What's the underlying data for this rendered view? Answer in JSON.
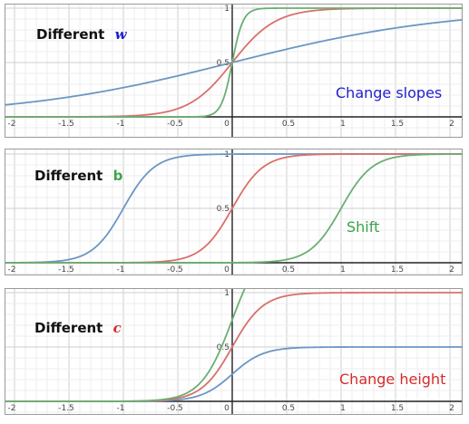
{
  "colors": {
    "blue": "#6b96c4",
    "red": "#d9706b",
    "green": "#6aaf72",
    "grid_minor": "#ededed",
    "grid_major": "#cfcfcf",
    "axis": "#222222",
    "panel_border": "#9a9a9a"
  },
  "chart_data": [
    {
      "type": "line",
      "title": "",
      "label_prefix": "Different",
      "label_var": "w",
      "label_var_color": "#1f1fcf",
      "annotation": "Change slopes",
      "annotation_color": "#1f1fcf",
      "xlim": [
        -2.1,
        2.1
      ],
      "ylim": [
        -0.22,
        1.0
      ],
      "x_ticks": [
        "-2",
        "-1.5",
        "-1",
        "-0.5",
        "0",
        "0.5",
        "1",
        "1.5",
        "2"
      ],
      "y_ticks": [
        "0.5",
        "1"
      ],
      "grid": true,
      "series": [
        {
          "color": "blue",
          "function": "sigmoid",
          "w": 1,
          "b": 0,
          "c": 1
        },
        {
          "color": "red",
          "function": "sigmoid",
          "w": 5,
          "b": 0,
          "c": 1
        },
        {
          "color": "green",
          "function": "sigmoid",
          "w": 20,
          "b": 0,
          "c": 1
        }
      ]
    },
    {
      "type": "line",
      "title": "",
      "label_prefix": "Different",
      "label_var": "b",
      "label_var_color": "#3aa34a",
      "annotation": "Shift",
      "annotation_color": "#3aa34a",
      "xlim": [
        -2.1,
        2.1
      ],
      "ylim": [
        -0.05,
        1.02
      ],
      "x_ticks": [
        "-2",
        "-1.5",
        "-1",
        "-0.5",
        "0",
        "0.5",
        "1",
        "1.5",
        "2"
      ],
      "y_ticks": [
        "0.5",
        "1"
      ],
      "grid": true,
      "series": [
        {
          "color": "blue",
          "function": "sigmoid",
          "w": 7,
          "b": -1,
          "c": 1
        },
        {
          "color": "red",
          "function": "sigmoid",
          "w": 7,
          "b": 0,
          "c": 1
        },
        {
          "color": "green",
          "function": "sigmoid",
          "w": 7,
          "b": 1,
          "c": 1
        }
      ]
    },
    {
      "type": "line",
      "title": "",
      "label_prefix": "Different",
      "label_var": "c",
      "label_var_color": "#d62b2b",
      "annotation": "Change height",
      "annotation_color": "#d62b2b",
      "xlim": [
        -2.1,
        2.1
      ],
      "ylim": [
        -0.05,
        1.02
      ],
      "x_ticks": [
        "-2",
        "-1.5",
        "-1",
        "-0.5",
        "0",
        "0.5",
        "1",
        "1.5",
        "2"
      ],
      "y_ticks": [
        "0.5",
        "1"
      ],
      "grid": true,
      "series": [
        {
          "color": "blue",
          "function": "sigmoid",
          "w": 7,
          "b": 0,
          "c": 0.5
        },
        {
          "color": "red",
          "function": "sigmoid",
          "w": 7,
          "b": 0,
          "c": 1
        },
        {
          "color": "green",
          "function": "sigmoid",
          "w": 7,
          "b": 0,
          "c": 1.5
        }
      ]
    }
  ]
}
